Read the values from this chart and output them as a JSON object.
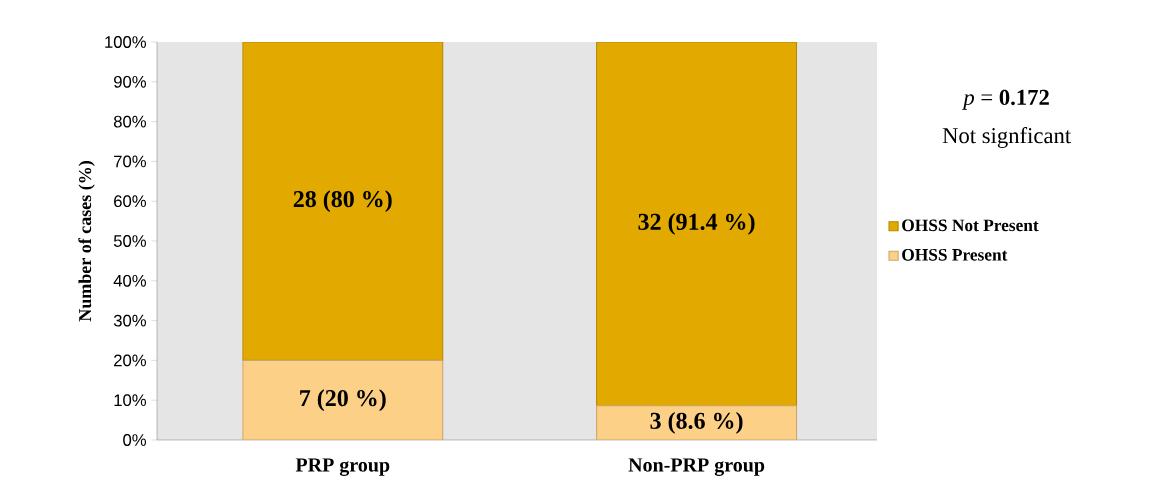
{
  "chart_data": {
    "type": "bar",
    "stacked": true,
    "ylabel": "Number of cases (%)",
    "categories": [
      "PRP group",
      "Non-PRP group"
    ],
    "series": [
      {
        "name": "OHSS Present",
        "color": "#fdd088",
        "values": [
          20,
          8.6
        ],
        "value_labels": [
          "7 (20 %)",
          "3 (8.6 %)"
        ]
      },
      {
        "name": "OHSS Not  Present",
        "color": "#e2aa00",
        "values": [
          80,
          91.4
        ],
        "value_labels": [
          "28 (80 %)",
          "32 (91.4 %)"
        ]
      }
    ],
    "ylim": [
      0,
      100
    ],
    "yticks": [
      {
        "value": 0,
        "label": "0%"
      },
      {
        "value": 10,
        "label": "10%"
      },
      {
        "value": 20,
        "label": "20%"
      },
      {
        "value": 30,
        "label": "30%"
      },
      {
        "value": 40,
        "label": "40%"
      },
      {
        "value": 50,
        "label": "50%"
      },
      {
        "value": 60,
        "label": "60%"
      },
      {
        "value": 70,
        "label": "70%"
      },
      {
        "value": 80,
        "label": "80%"
      },
      {
        "value": 90,
        "label": "90%"
      },
      {
        "value": 100,
        "label": "100%"
      }
    ],
    "legend": "right",
    "annotations": [
      "*p* = **0.172**",
      "Not signficant"
    ]
  }
}
